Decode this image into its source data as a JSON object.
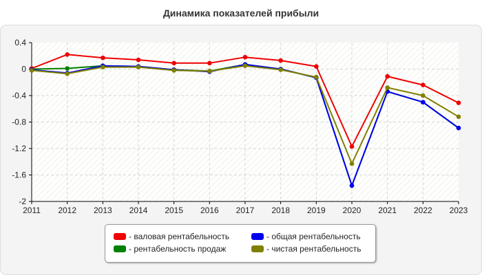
{
  "colors": {
    "valovaya": "#ee0000",
    "prodazh": "#008000",
    "obshaya": "#0000ee",
    "chistaya": "#808000"
  },
  "legend": {
    "items": [
      {
        "label": "- валовая рентабельность",
        "color": "#ee0000"
      },
      {
        "label": "- общая рентабельность",
        "color": "#0000ee"
      },
      {
        "label": "- рентабельность продаж",
        "color": "#008000"
      },
      {
        "label": "- чистая рентабельность",
        "color": "#808000"
      }
    ]
  },
  "chart_data": {
    "type": "line",
    "title": "Динамика показателей прибыли",
    "xlabel": "",
    "ylabel": "",
    "categories": [
      "2011",
      "2012",
      "2013",
      "2014",
      "2015",
      "2016",
      "2017",
      "2018",
      "2019",
      "2020",
      "2021",
      "2022",
      "2023"
    ],
    "y_ticks": [
      "0.4",
      "0",
      "-0.4",
      "-0.8",
      "-1.2",
      "-1.6",
      "-2"
    ],
    "ylim": [
      -2,
      0.4
    ],
    "grid": true,
    "legend_position": "bottom",
    "series": [
      {
        "name": "валовая рентабельность",
        "color": "#ee0000",
        "values": [
          0.01,
          0.22,
          0.17,
          0.14,
          0.09,
          0.09,
          0.18,
          0.13,
          0.04,
          -1.17,
          -0.11,
          -0.24,
          -0.51
        ]
      },
      {
        "name": "рентабельность продаж",
        "color": "#008000",
        "values": [
          0.0,
          0.01,
          0.05,
          0.04,
          -0.01,
          -0.03,
          0.07,
          0.0,
          -0.13,
          -1.76,
          -0.34,
          -0.5,
          -0.89
        ]
      },
      {
        "name": "общая рентабельность",
        "color": "#0000ee",
        "values": [
          -0.01,
          -0.06,
          0.05,
          0.04,
          -0.01,
          -0.04,
          0.07,
          0.0,
          -0.13,
          -1.76,
          -0.34,
          -0.5,
          -0.89
        ]
      },
      {
        "name": "чистая рентабельность",
        "color": "#808000",
        "values": [
          -0.02,
          -0.07,
          0.03,
          0.03,
          -0.02,
          -0.03,
          0.05,
          -0.01,
          -0.12,
          -1.43,
          -0.28,
          -0.4,
          -0.72
        ]
      }
    ]
  }
}
